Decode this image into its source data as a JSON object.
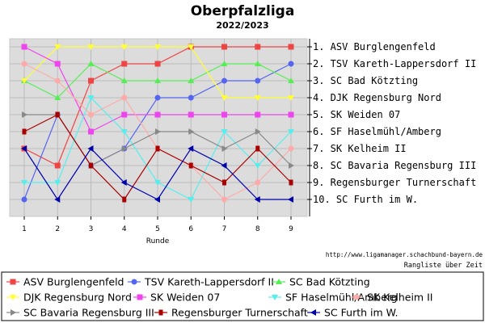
{
  "chart_data": {
    "type": "line",
    "title": "Oberpfalzliga",
    "subtitle": "2022/2023",
    "xlabel": "Runde",
    "ylabel": "",
    "x": [
      1,
      2,
      3,
      4,
      5,
      6,
      7,
      8,
      9
    ],
    "ylim": [
      1,
      10
    ],
    "y_inverted": true,
    "grid": true,
    "rank_labels": [
      "1. ASV Burglengenfeld",
      "2. TSV Kareth-Lappersdorf II",
      "3. SC Bad Kötzting",
      "4. DJK Regensburg Nord",
      "5. SK Weiden 07",
      "6. SF Haselmühl/Amberg",
      "7. SK Kelheim II",
      "8. SC Bavaria Regensburg III",
      "9. Regensburger Turnerschaft",
      "10. SC Furth im W."
    ],
    "source_url": "http://www.ligamanager.schachbund-bayern.de",
    "source_caption": "Rangliste über Zeit",
    "legend_position": "bottom",
    "series": [
      {
        "name": "ASV Burglengenfeld",
        "color": "#ee4444",
        "marker": "square",
        "values": [
          7,
          8,
          3,
          2,
          2,
          1,
          1,
          1,
          1
        ]
      },
      {
        "name": "TSV Kareth-Lappersdorf II",
        "color": "#5566ee",
        "marker": "circle",
        "values": [
          10,
          5,
          8,
          7,
          4,
          4,
          3,
          3,
          2
        ]
      },
      {
        "name": "SC Bad Kötzting",
        "color": "#55ee55",
        "marker": "triangle-up",
        "values": [
          3,
          4,
          2,
          3,
          3,
          3,
          2,
          2,
          3
        ]
      },
      {
        "name": "DJK Regensburg Nord",
        "color": "#ffff33",
        "marker": "triangle-down",
        "values": [
          3,
          1,
          1,
          1,
          1,
          1,
          4,
          4,
          4
        ]
      },
      {
        "name": "SK Weiden 07",
        "color": "#ee44ee",
        "marker": "square",
        "values": [
          1,
          2,
          6,
          5,
          5,
          5,
          5,
          5,
          5
        ]
      },
      {
        "name": "SF Haselmühl/Amberg",
        "color": "#55eeee",
        "marker": "triangle-down",
        "values": [
          9,
          9,
          4,
          6,
          9,
          10,
          6,
          8,
          6
        ]
      },
      {
        "name": "SK Kelheim II",
        "color": "#ffaaaa",
        "marker": "circle",
        "values": [
          2,
          3,
          5,
          4,
          7,
          8,
          10,
          9,
          7
        ]
      },
      {
        "name": "SC Bavaria Regensburg III",
        "color": "#888888",
        "marker": "triangle-right",
        "values": [
          5,
          5,
          8,
          7,
          6,
          6,
          7,
          6,
          8
        ]
      },
      {
        "name": "Regensburger Turnerschaft",
        "color": "#aa0000",
        "marker": "square-small",
        "values": [
          6,
          5,
          8,
          10,
          7,
          8,
          9,
          7,
          9
        ]
      },
      {
        "name": "SC Furth im W.",
        "color": "#0000aa",
        "marker": "triangle-left",
        "values": [
          7,
          10,
          7,
          9,
          10,
          7,
          8,
          10,
          10
        ]
      }
    ]
  }
}
